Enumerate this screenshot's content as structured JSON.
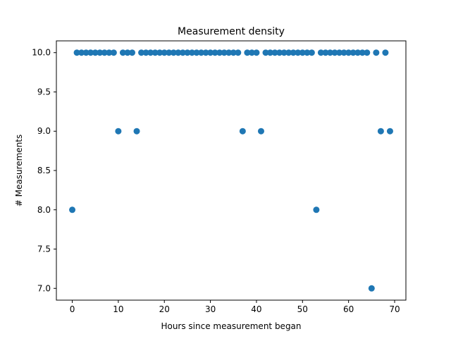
{
  "chart_data": {
    "type": "scatter",
    "title": "Measurement density",
    "xlabel": "Hours since measurement began",
    "ylabel": "# Measurements",
    "xlim": [
      -3.45,
      72.45
    ],
    "ylim": [
      6.85,
      10.15
    ],
    "xticks": [
      0,
      10,
      20,
      30,
      40,
      50,
      60,
      70
    ],
    "xtick_labels": [
      "0",
      "10",
      "20",
      "30",
      "40",
      "50",
      "60",
      "70"
    ],
    "yticks": [
      7.0,
      7.5,
      8.0,
      8.5,
      9.0,
      9.5,
      10.0
    ],
    "ytick_labels": [
      "7.0",
      "7.5",
      "8.0",
      "8.5",
      "9.0",
      "9.5",
      "10.0"
    ],
    "grid": false,
    "marker_color": "#1f77b4",
    "points": [
      {
        "x": 0,
        "y": 8
      },
      {
        "x": 1,
        "y": 10
      },
      {
        "x": 2,
        "y": 10
      },
      {
        "x": 3,
        "y": 10
      },
      {
        "x": 4,
        "y": 10
      },
      {
        "x": 5,
        "y": 10
      },
      {
        "x": 6,
        "y": 10
      },
      {
        "x": 7,
        "y": 10
      },
      {
        "x": 8,
        "y": 10
      },
      {
        "x": 9,
        "y": 10
      },
      {
        "x": 10,
        "y": 9
      },
      {
        "x": 11,
        "y": 10
      },
      {
        "x": 12,
        "y": 10
      },
      {
        "x": 13,
        "y": 10
      },
      {
        "x": 14,
        "y": 9
      },
      {
        "x": 15,
        "y": 10
      },
      {
        "x": 16,
        "y": 10
      },
      {
        "x": 17,
        "y": 10
      },
      {
        "x": 18,
        "y": 10
      },
      {
        "x": 19,
        "y": 10
      },
      {
        "x": 20,
        "y": 10
      },
      {
        "x": 21,
        "y": 10
      },
      {
        "x": 22,
        "y": 10
      },
      {
        "x": 23,
        "y": 10
      },
      {
        "x": 24,
        "y": 10
      },
      {
        "x": 25,
        "y": 10
      },
      {
        "x": 26,
        "y": 10
      },
      {
        "x": 27,
        "y": 10
      },
      {
        "x": 28,
        "y": 10
      },
      {
        "x": 29,
        "y": 10
      },
      {
        "x": 30,
        "y": 10
      },
      {
        "x": 31,
        "y": 10
      },
      {
        "x": 32,
        "y": 10
      },
      {
        "x": 33,
        "y": 10
      },
      {
        "x": 34,
        "y": 10
      },
      {
        "x": 35,
        "y": 10
      },
      {
        "x": 36,
        "y": 10
      },
      {
        "x": 37,
        "y": 9
      },
      {
        "x": 38,
        "y": 10
      },
      {
        "x": 39,
        "y": 10
      },
      {
        "x": 40,
        "y": 10
      },
      {
        "x": 41,
        "y": 9
      },
      {
        "x": 42,
        "y": 10
      },
      {
        "x": 43,
        "y": 10
      },
      {
        "x": 44,
        "y": 10
      },
      {
        "x": 45,
        "y": 10
      },
      {
        "x": 46,
        "y": 10
      },
      {
        "x": 47,
        "y": 10
      },
      {
        "x": 48,
        "y": 10
      },
      {
        "x": 49,
        "y": 10
      },
      {
        "x": 50,
        "y": 10
      },
      {
        "x": 51,
        "y": 10
      },
      {
        "x": 52,
        "y": 10
      },
      {
        "x": 53,
        "y": 8
      },
      {
        "x": 54,
        "y": 10
      },
      {
        "x": 55,
        "y": 10
      },
      {
        "x": 56,
        "y": 10
      },
      {
        "x": 57,
        "y": 10
      },
      {
        "x": 58,
        "y": 10
      },
      {
        "x": 59,
        "y": 10
      },
      {
        "x": 60,
        "y": 10
      },
      {
        "x": 61,
        "y": 10
      },
      {
        "x": 62,
        "y": 10
      },
      {
        "x": 63,
        "y": 10
      },
      {
        "x": 64,
        "y": 10
      },
      {
        "x": 65,
        "y": 7
      },
      {
        "x": 66,
        "y": 10
      },
      {
        "x": 67,
        "y": 9
      },
      {
        "x": 68,
        "y": 10
      },
      {
        "x": 69,
        "y": 9
      }
    ]
  }
}
